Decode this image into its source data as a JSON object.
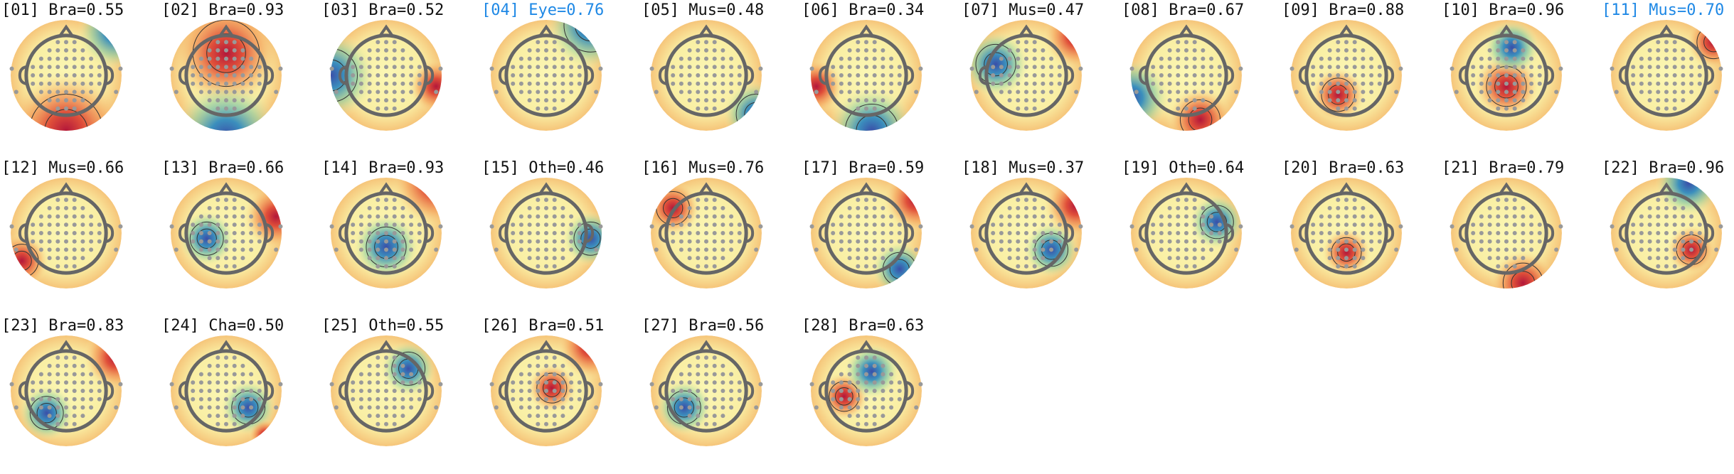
{
  "components": [
    {
      "title": "[01] Bra=0.55",
      "selected": false
    },
    {
      "title": "[02] Bra=0.93",
      "selected": false
    },
    {
      "title": "[03] Bra=0.52",
      "selected": false
    },
    {
      "title": "[04] Eye=0.76",
      "selected": true
    },
    {
      "title": "[05] Mus=0.48",
      "selected": false
    },
    {
      "title": "[06] Bra=0.34",
      "selected": false
    },
    {
      "title": "[07] Mus=0.47",
      "selected": false
    },
    {
      "title": "[08] Bra=0.67",
      "selected": false
    },
    {
      "title": "[09] Bra=0.88",
      "selected": false
    },
    {
      "title": "[10] Bra=0.96",
      "selected": false
    },
    {
      "title": "[11] Mus=0.70",
      "selected": true
    },
    {
      "title": "[12] Mus=0.66",
      "selected": false
    },
    {
      "title": "[13] Bra=0.66",
      "selected": false
    },
    {
      "title": "[14] Bra=0.93",
      "selected": false
    },
    {
      "title": "[15] Oth=0.46",
      "selected": false
    },
    {
      "title": "[16] Mus=0.76",
      "selected": false
    },
    {
      "title": "[17] Bra=0.59",
      "selected": false
    },
    {
      "title": "[18] Mus=0.37",
      "selected": false
    },
    {
      "title": "[19] Oth=0.64",
      "selected": false
    },
    {
      "title": "[20] Bra=0.63",
      "selected": false
    },
    {
      "title": "[21] Bra=0.79",
      "selected": false
    },
    {
      "title": "[22] Bra=0.96",
      "selected": false
    },
    {
      "title": "[23] Bra=0.83",
      "selected": false
    },
    {
      "title": "[24] Cha=0.50",
      "selected": false
    },
    {
      "title": "[25] Oth=0.55",
      "selected": false
    },
    {
      "title": "[26] Bra=0.51",
      "selected": false
    },
    {
      "title": "[27] Bra=0.56",
      "selected": false
    },
    {
      "title": "[28] Bra=0.63",
      "selected": false
    }
  ]
}
